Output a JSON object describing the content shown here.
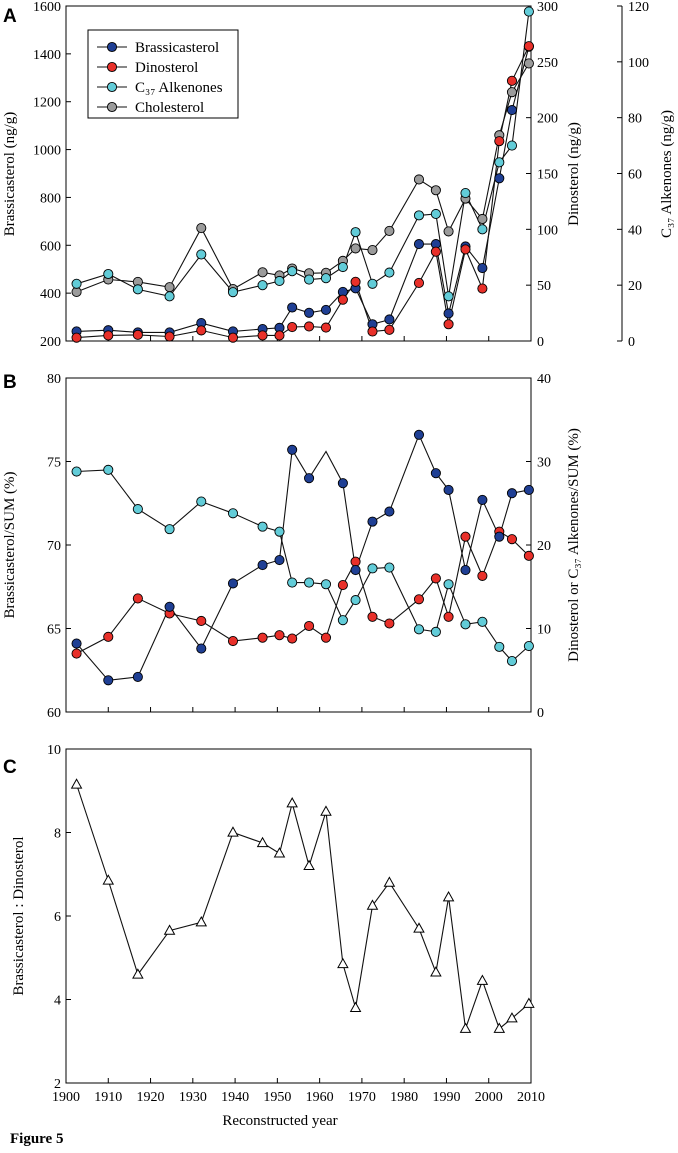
{
  "caption": "Figure 5",
  "colors": {
    "brassicasterol": "#1f3f94",
    "dinosterol": "#e8302a",
    "alkenones": "#62ccd8",
    "cholesterol": "#9b9b9b",
    "line": "#111111"
  },
  "chart_data": [
    {
      "panel": "A",
      "type": "line",
      "x": {
        "label": "",
        "min": 1900,
        "max": 2010
      },
      "axes": {
        "left": {
          "label": "Brassicasterol (ng/g)",
          "min": 200,
          "max": 1600,
          "ticks": [
            200,
            400,
            600,
            800,
            1000,
            1200,
            1400,
            1600
          ]
        },
        "right1": {
          "label": "Dinosterol (ng/g)",
          "min": 0,
          "max": 300,
          "ticks": [
            0,
            50,
            100,
            150,
            200,
            250,
            300
          ]
        },
        "right2": {
          "label": "C₃₇ Alkenones (ng/g)",
          "min": 0,
          "max": 120,
          "ticks": [
            0,
            20,
            40,
            60,
            80,
            100,
            120
          ]
        }
      },
      "legend_position": "top-left",
      "legend": [
        "Brassicasterol",
        "Dinosterol",
        "C₃₇ Alkenones",
        "Cholesterol"
      ],
      "series": [
        {
          "name": "Cholesterol",
          "axis": "left",
          "color": "#9b9b9b",
          "x": [
            1902.5,
            1910,
            1917,
            1924.5,
            1932,
            1939.5,
            1946.5,
            1950.5,
            1953.5,
            1957.5,
            1961.5,
            1965.5,
            1968.5,
            1972.5,
            1976.5,
            1983.5,
            1987.5,
            1990.5,
            1994.5,
            1998.5,
            2002.5,
            2005.5,
            2009.5
          ],
          "values": [
            405,
            457,
            447,
            425,
            672,
            417,
            487,
            474,
            503,
            483,
            485,
            535,
            587,
            580,
            660,
            875,
            830,
            658,
            795,
            710,
            1060,
            1240,
            1360
          ]
        },
        {
          "name": "C₃₇ Alkenones",
          "axis": "right2",
          "color": "#62ccd8",
          "x": [
            1902.5,
            1910,
            1917,
            1924.5,
            1932,
            1939.5,
            1946.5,
            1950.5,
            1953.5,
            1957.5,
            1961.5,
            1965.5,
            1968.5,
            1972.5,
            1976.5,
            1983.5,
            1987.5,
            1990.5,
            1994.5,
            1998.5,
            2002.5,
            2005.5,
            2009.5
          ],
          "values": [
            20.5,
            24,
            18.5,
            16,
            31,
            17.5,
            20,
            21.5,
            25,
            22,
            22.5,
            26.5,
            39,
            20.5,
            24.5,
            45,
            45.5,
            16,
            53,
            40,
            64,
            70,
            118
          ]
        },
        {
          "name": "Brassicasterol",
          "axis": "left",
          "color": "#1f3f94",
          "x": [
            1902.5,
            1910,
            1917,
            1924.5,
            1932,
            1939.5,
            1946.5,
            1950.5,
            1953.5,
            1957.5,
            1961.5,
            1965.5,
            1968.5,
            1972.5,
            1976.5,
            1983.5,
            1987.5,
            1990.5,
            1994.5,
            1998.5,
            2002.5,
            2005.5,
            2009.5
          ],
          "values": [
            240,
            245,
            236,
            236,
            275,
            240,
            250,
            255,
            340,
            318,
            330,
            405,
            420,
            270,
            290,
            605,
            605,
            315,
            595,
            505,
            880,
            1165,
            1430
          ]
        },
        {
          "name": "Dinosterol",
          "axis": "right1",
          "color": "#e8302a",
          "x": [
            1902.5,
            1910,
            1917,
            1924.5,
            1932,
            1939.5,
            1946.5,
            1950.5,
            1953.5,
            1957.5,
            1961.5,
            1965.5,
            1968.5,
            1972.5,
            1976.5,
            1983.5,
            1987.5,
            1990.5,
            1994.5,
            1998.5,
            2002.5,
            2005.5,
            2009.5
          ],
          "values": [
            3,
            5,
            5.5,
            4,
            9.5,
            3,
            5,
            5,
            12.5,
            13,
            12,
            37,
            53,
            8.5,
            10,
            52,
            80,
            15,
            82,
            47,
            179,
            233,
            264
          ]
        }
      ]
    },
    {
      "panel": "B",
      "type": "line",
      "x": {
        "label": "",
        "min": 1900,
        "max": 2010
      },
      "axes": {
        "left": {
          "label": "Brassicasterol/SUM (%)",
          "min": 60,
          "max": 80,
          "ticks": [
            60,
            65,
            70,
            75,
            80
          ]
        },
        "right": {
          "label": "Dinosterol or C₃₇ Alkenones/SUM (%)",
          "min": 0,
          "max": 40,
          "ticks": [
            0,
            10,
            20,
            30,
            40
          ]
        }
      },
      "series": [
        {
          "name": "C₃₇ Alkenones/SUM",
          "axis": "right",
          "color": "#62ccd8",
          "x": [
            1902.5,
            1910,
            1917,
            1924.5,
            1932,
            1939.5,
            1946.5,
            1950.5,
            1953.5,
            1957.5,
            1961.5,
            1965.5,
            1968.5,
            1972.5,
            1976.5,
            1983.5,
            1987.5,
            1990.5,
            1994.5,
            1998.5,
            2002.5,
            2005.5,
            2009.5
          ],
          "values": [
            28.8,
            29,
            24.3,
            21.9,
            25.2,
            23.8,
            22.2,
            21.6,
            15.5,
            15.5,
            15.3,
            11,
            13.4,
            17.2,
            17.3,
            9.9,
            9.6,
            15.3,
            10.5,
            10.8,
            7.8,
            6.1,
            7.9
          ]
        },
        {
          "name": "Dinosterol/SUM",
          "axis": "right",
          "color": "#e8302a",
          "x": [
            1902.5,
            1910,
            1917,
            1924.5,
            1932,
            1939.5,
            1946.5,
            1950.5,
            1953.5,
            1957.5,
            1961.5,
            1965.5,
            1968.5,
            1972.5,
            1976.5,
            1983.5,
            1987.5,
            1990.5,
            1994.5,
            1998.5,
            2002.5,
            2005.5,
            2009.5
          ],
          "values": [
            7,
            9,
            13.6,
            11.8,
            10.9,
            8.5,
            8.9,
            9.2,
            8.8,
            10.3,
            8.9,
            15.2,
            18,
            11.4,
            10.6,
            13.5,
            16,
            11.4,
            21,
            16.3,
            21.6,
            20.7,
            18.7
          ]
        },
        {
          "name": "Brassicasterol/SUM",
          "axis": "left",
          "color": "#1f3f94",
          "x": [
            1902.5,
            1910,
            1917,
            1924.5,
            1932,
            1939.5,
            1946.5,
            1950.5,
            1953.5,
            1957.5,
            1961.5,
            1965.5,
            1968.5,
            1972.5,
            1976.5,
            1983.5,
            1987.5,
            1990.5,
            1994.5,
            1998.5,
            2002.5,
            2005.5,
            2009.5
          ],
          "values": [
            64.1,
            61.9,
            62.1,
            66.3,
            63.8,
            67.7,
            68.8,
            69.1,
            75.7,
            74,
            null,
            73.7,
            68.5,
            71.4,
            72,
            76.6,
            74.3,
            73.3,
            68.5,
            72.7,
            70.5,
            73.1,
            73.3
          ],
          "unmarked_points": [
            {
              "x": 1961.5,
              "value": 75.6
            }
          ]
        }
      ]
    },
    {
      "panel": "C",
      "type": "line",
      "x": {
        "label": "Reconstructed year",
        "min": 1900,
        "max": 2010,
        "ticks": [
          1900,
          1910,
          1920,
          1930,
          1940,
          1950,
          1960,
          1970,
          1980,
          1990,
          2000,
          2010
        ]
      },
      "axes": {
        "left": {
          "label": "Brassicasterol : Dinosterol",
          "min": 2,
          "max": 10,
          "ticks": [
            2,
            4,
            6,
            8,
            10
          ]
        }
      },
      "series": [
        {
          "name": "Brassicasterol : Dinosterol",
          "axis": "left",
          "color": "#111111",
          "marker": "open-triangle",
          "x": [
            1902.5,
            1910,
            1917,
            1924.5,
            1932,
            1939.5,
            1946.5,
            1950.5,
            1953.5,
            1957.5,
            1961.5,
            1965.5,
            1968.5,
            1972.5,
            1976.5,
            1983.5,
            1987.5,
            1990.5,
            1994.5,
            1998.5,
            2002.5,
            2005.5,
            2009.5
          ],
          "values": [
            9.15,
            6.85,
            4.6,
            5.65,
            5.85,
            8,
            7.75,
            7.5,
            8.7,
            7.2,
            8.5,
            4.85,
            3.8,
            6.25,
            6.8,
            5.7,
            4.65,
            6.45,
            3.3,
            4.45,
            3.3,
            3.55,
            3.9
          ]
        }
      ]
    }
  ]
}
